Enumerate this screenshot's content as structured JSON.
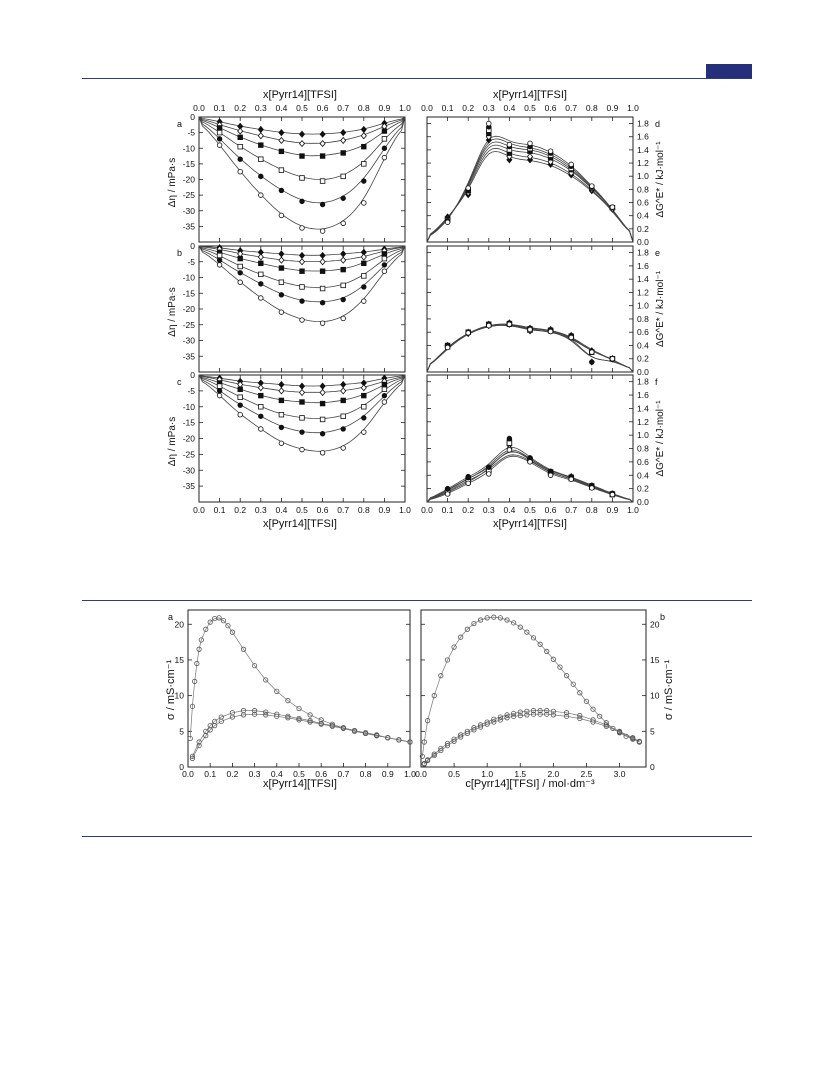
{
  "page": {
    "accent": "#26307a",
    "rule_color": "#2b3a8a"
  },
  "figure1": {
    "top_axis_label": "x[Pyrr14][TFSI]",
    "bottom_axis_label": "x[Pyrr14][TFSI]",
    "x_ticks": [
      "0.0",
      "0.1",
      "0.2",
      "0.3",
      "0.4",
      "0.5",
      "0.6",
      "0.7",
      "0.8",
      "0.9",
      "1.0"
    ],
    "left_ylabel": "Δη / mPa·s",
    "right_ylabel": "ΔG^E* / kJ·mol⁻¹",
    "left_yticks": [
      "0",
      "-5",
      "-10",
      "-15",
      "-20",
      "-25",
      "-30",
      "-35"
    ],
    "right_yticks": [
      "0.0",
      "0.2",
      "0.4",
      "0.6",
      "0.8",
      "1.0",
      "1.2",
      "1.4",
      "1.6",
      "1.8"
    ],
    "panel_letters": [
      "a",
      "b",
      "c",
      "d",
      "e",
      "f"
    ]
  },
  "figure2": {
    "panel_letters": [
      "a",
      "b"
    ],
    "left_xlabel": "x[Pyrr14][TFSI]",
    "right_xlabel": "c[Pyrr14][TFSI] / mol·dm⁻³",
    "ylabel": "σ / mS·cm⁻¹",
    "left_xticks": [
      "0.0",
      "0.1",
      "0.2",
      "0.3",
      "0.4",
      "0.5",
      "0.6",
      "0.7",
      "0.8",
      "0.9",
      "1.0"
    ],
    "right_xticks": [
      "0.0",
      "0.5",
      "1.0",
      "1.5",
      "2.0",
      "2.5",
      "3.0"
    ],
    "yticks": [
      "0",
      "5",
      "10",
      "15",
      "20"
    ]
  },
  "chart_data": [
    {
      "type": "scatter",
      "panel": "a",
      "xlim": [
        0,
        1
      ],
      "ylim": [
        -40,
        0
      ],
      "x": [
        0.1,
        0.2,
        0.3,
        0.4,
        0.5,
        0.6,
        0.7,
        0.8,
        0.9
      ],
      "series": [
        {
          "marker": "filled-diamond",
          "values": [
            -1.5,
            -3.0,
            -4.0,
            -5.0,
            -5.5,
            -5.5,
            -5.0,
            -4.0,
            -2.0
          ]
        },
        {
          "marker": "open-diamond",
          "values": [
            -2.5,
            -4.5,
            -6.0,
            -7.5,
            -8.5,
            -8.5,
            -7.5,
            -6.0,
            -3.0
          ]
        },
        {
          "marker": "filled-square",
          "values": [
            -3.5,
            -6.5,
            -9.0,
            -11.0,
            -12.5,
            -12.5,
            -11.5,
            -9.5,
            -4.5
          ]
        },
        {
          "marker": "open-square",
          "values": [
            -5.0,
            -9.5,
            -13.5,
            -17.0,
            -19.5,
            -20.5,
            -19.0,
            -15.0,
            -7.0
          ]
        },
        {
          "marker": "filled-circle",
          "values": [
            -7.0,
            -13.5,
            -19.0,
            -23.5,
            -27.0,
            -28.0,
            -26.0,
            -20.5,
            -10.0
          ]
        },
        {
          "marker": "open-circle",
          "values": [
            -9.0,
            -17.5,
            -25.0,
            -31.5,
            -35.5,
            -36.5,
            -34.0,
            -27.5,
            -13.0
          ]
        }
      ]
    },
    {
      "type": "scatter",
      "panel": "b",
      "xlim": [
        0,
        1
      ],
      "ylim": [
        -40,
        0
      ],
      "x": [
        0.1,
        0.2,
        0.3,
        0.4,
        0.5,
        0.6,
        0.7,
        0.8,
        0.9
      ],
      "series": [
        {
          "marker": "filled-diamond",
          "values": [
            -0.5,
            -1.5,
            -2.0,
            -2.5,
            -3.0,
            -3.0,
            -2.5,
            -2.0,
            -1.0
          ]
        },
        {
          "marker": "open-diamond",
          "values": [
            -1.0,
            -2.5,
            -3.5,
            -4.5,
            -5.0,
            -5.0,
            -4.5,
            -3.5,
            -1.5
          ]
        },
        {
          "marker": "filled-square",
          "values": [
            -2.0,
            -4.0,
            -5.5,
            -7.0,
            -8.0,
            -8.0,
            -7.5,
            -5.5,
            -2.5
          ]
        },
        {
          "marker": "open-square",
          "values": [
            -3.0,
            -6.5,
            -9.0,
            -11.5,
            -13.0,
            -13.5,
            -12.5,
            -9.5,
            -4.0
          ]
        },
        {
          "marker": "filled-circle",
          "values": [
            -4.5,
            -8.5,
            -12.0,
            -15.5,
            -17.5,
            -18.0,
            -17.0,
            -13.0,
            -6.0
          ]
        },
        {
          "marker": "open-circle",
          "values": [
            -6.0,
            -11.5,
            -16.5,
            -21.0,
            -23.5,
            -24.5,
            -23.0,
            -17.5,
            -8.0
          ]
        }
      ]
    },
    {
      "type": "scatter",
      "panel": "c",
      "xlim": [
        0,
        1
      ],
      "ylim": [
        -40,
        0
      ],
      "x": [
        0.1,
        0.2,
        0.3,
        0.4,
        0.5,
        0.6,
        0.7,
        0.8,
        0.9
      ],
      "series": [
        {
          "marker": "filled-diamond",
          "values": [
            -1.0,
            -2.0,
            -2.5,
            -3.0,
            -3.5,
            -3.5,
            -3.0,
            -2.5,
            -1.0
          ]
        },
        {
          "marker": "open-diamond",
          "values": [
            -1.5,
            -3.0,
            -4.0,
            -5.0,
            -5.5,
            -5.5,
            -5.0,
            -4.0,
            -2.0
          ]
        },
        {
          "marker": "filled-square",
          "values": [
            -2.5,
            -4.5,
            -6.5,
            -8.0,
            -8.5,
            -9.0,
            -8.0,
            -6.5,
            -3.0
          ]
        },
        {
          "marker": "open-square",
          "values": [
            -3.5,
            -7.0,
            -10.0,
            -12.5,
            -13.5,
            -14.0,
            -13.0,
            -10.0,
            -4.5
          ]
        },
        {
          "marker": "filled-circle",
          "values": [
            -5.0,
            -9.5,
            -13.0,
            -16.5,
            -18.0,
            -18.5,
            -17.0,
            -13.5,
            -6.5
          ]
        },
        {
          "marker": "open-circle",
          "values": [
            -6.5,
            -12.5,
            -17.0,
            -21.5,
            -23.5,
            -24.5,
            -23.0,
            -18.0,
            -8.5
          ]
        }
      ]
    },
    {
      "type": "scatter",
      "panel": "d",
      "xlim": [
        0,
        1
      ],
      "ylim": [
        0,
        1.9
      ],
      "x": [
        0.1,
        0.2,
        0.3,
        0.4,
        0.5,
        0.6,
        0.7,
        0.8,
        0.9
      ],
      "series": [
        {
          "marker": "filled-diamond",
          "values": [
            0.38,
            0.72,
            1.55,
            1.25,
            1.25,
            1.18,
            1.02,
            0.78,
            0.5
          ]
        },
        {
          "marker": "open-diamond",
          "values": [
            0.36,
            0.75,
            1.6,
            1.3,
            1.3,
            1.22,
            1.05,
            0.8,
            0.5
          ]
        },
        {
          "marker": "filled-square",
          "values": [
            0.35,
            0.78,
            1.65,
            1.35,
            1.38,
            1.28,
            1.1,
            0.82,
            0.52
          ]
        },
        {
          "marker": "open-square",
          "values": [
            0.33,
            0.8,
            1.7,
            1.4,
            1.42,
            1.32,
            1.12,
            0.83,
            0.52
          ]
        },
        {
          "marker": "filled-circle",
          "values": [
            0.32,
            0.8,
            1.75,
            1.45,
            1.45,
            1.35,
            1.15,
            0.84,
            0.53
          ]
        },
        {
          "marker": "open-circle",
          "values": [
            0.3,
            0.82,
            1.8,
            1.48,
            1.5,
            1.38,
            1.18,
            0.85,
            0.53
          ]
        }
      ]
    },
    {
      "type": "scatter",
      "panel": "e",
      "xlim": [
        0,
        1
      ],
      "ylim": [
        0,
        1.9
      ],
      "x": [
        0.1,
        0.2,
        0.3,
        0.4,
        0.5,
        0.6,
        0.7,
        0.8,
        0.9
      ],
      "series": [
        {
          "marker": "filled-diamond",
          "values": [
            0.38,
            0.58,
            0.72,
            0.74,
            0.66,
            0.64,
            0.55,
            0.32,
            0.2
          ]
        },
        {
          "marker": "open-diamond",
          "values": [
            0.4,
            0.6,
            0.7,
            0.72,
            0.62,
            0.62,
            0.52,
            0.15,
            0.2
          ]
        },
        {
          "marker": "filled-square",
          "values": [
            0.4,
            0.6,
            0.72,
            0.73,
            0.65,
            0.63,
            0.54,
            0.3,
            0.2
          ]
        },
        {
          "marker": "open-square",
          "values": [
            0.38,
            0.6,
            0.71,
            0.72,
            0.63,
            0.62,
            0.53,
            0.3,
            0.2
          ]
        },
        {
          "marker": "filled-circle",
          "values": [
            0.39,
            0.6,
            0.72,
            0.73,
            0.66,
            0.63,
            0.55,
            0.15,
            0.2
          ]
        },
        {
          "marker": "open-circle",
          "values": [
            0.37,
            0.59,
            0.7,
            0.72,
            0.64,
            0.61,
            0.52,
            0.3,
            0.2
          ]
        }
      ]
    },
    {
      "type": "scatter",
      "panel": "f",
      "xlim": [
        0,
        1
      ],
      "ylim": [
        0,
        1.9
      ],
      "x": [
        0.1,
        0.2,
        0.3,
        0.4,
        0.5,
        0.6,
        0.7,
        0.8,
        0.9
      ],
      "series": [
        {
          "marker": "filled-diamond",
          "values": [
            0.18,
            0.36,
            0.48,
            0.85,
            0.65,
            0.44,
            0.38,
            0.24,
            0.12
          ]
        },
        {
          "marker": "open-diamond",
          "values": [
            0.15,
            0.33,
            0.45,
            0.8,
            0.62,
            0.42,
            0.36,
            0.23,
            0.12
          ]
        },
        {
          "marker": "filled-square",
          "values": [
            0.17,
            0.35,
            0.5,
            0.9,
            0.64,
            0.45,
            0.37,
            0.24,
            0.12
          ]
        },
        {
          "marker": "open-square",
          "values": [
            0.14,
            0.3,
            0.46,
            0.88,
            0.62,
            0.43,
            0.35,
            0.22,
            0.11
          ]
        },
        {
          "marker": "filled-circle",
          "values": [
            0.2,
            0.38,
            0.52,
            0.95,
            0.66,
            0.46,
            0.38,
            0.25,
            0.13
          ]
        },
        {
          "marker": "open-circle",
          "values": [
            0.12,
            0.28,
            0.42,
            0.78,
            0.6,
            0.4,
            0.34,
            0.21,
            0.11
          ]
        }
      ]
    },
    {
      "type": "scatter",
      "panel": "a2",
      "xlim": [
        0,
        1
      ],
      "ylim": [
        0,
        22
      ],
      "series": [
        {
          "marker": "open-circle",
          "x": [
            0.01,
            0.02,
            0.03,
            0.04,
            0.05,
            0.06,
            0.08,
            0.1,
            0.12,
            0.14,
            0.16,
            0.18,
            0.2,
            0.25,
            0.3,
            0.35,
            0.4,
            0.45,
            0.5,
            0.55,
            0.6,
            0.65,
            0.7,
            0.75,
            0.8,
            0.85,
            0.9,
            0.95,
            1.0
          ],
          "values": [
            4.0,
            8.5,
            12.0,
            14.5,
            16.5,
            17.8,
            19.3,
            20.3,
            20.8,
            20.9,
            20.5,
            19.8,
            18.9,
            16.5,
            14.2,
            12.2,
            10.6,
            9.3,
            8.2,
            7.3,
            6.6,
            6.0,
            5.5,
            5.1,
            4.7,
            4.4,
            4.1,
            3.8,
            3.5
          ]
        },
        {
          "marker": "open-circle",
          "x": [
            0.02,
            0.05,
            0.08,
            0.1,
            0.12,
            0.15,
            0.2,
            0.25,
            0.3,
            0.35,
            0.4,
            0.45,
            0.5,
            0.55,
            0.6,
            0.65,
            0.7,
            0.75,
            0.8,
            0.85,
            0.9,
            0.95,
            1.0
          ],
          "values": [
            1.5,
            3.5,
            5.0,
            5.8,
            6.4,
            7.0,
            7.6,
            7.9,
            7.9,
            7.7,
            7.4,
            7.1,
            6.8,
            6.5,
            6.1,
            5.8,
            5.5,
            5.1,
            4.8,
            4.5,
            4.1,
            3.8,
            3.5
          ]
        },
        {
          "marker": "open-circle",
          "x": [
            0.02,
            0.05,
            0.08,
            0.1,
            0.12,
            0.15,
            0.2,
            0.25,
            0.3,
            0.35,
            0.4,
            0.45,
            0.5,
            0.55,
            0.6,
            0.65,
            0.7,
            0.75,
            0.8,
            0.85,
            0.9,
            0.95,
            1.0
          ],
          "values": [
            1.2,
            3.0,
            4.4,
            5.2,
            5.8,
            6.4,
            7.0,
            7.3,
            7.4,
            7.3,
            7.1,
            6.9,
            6.6,
            6.3,
            6.0,
            5.7,
            5.4,
            5.0,
            4.7,
            4.4,
            4.1,
            3.8,
            3.5
          ]
        }
      ]
    },
    {
      "type": "scatter",
      "panel": "b2",
      "xlim": [
        0,
        3.4
      ],
      "ylim": [
        0,
        22
      ],
      "series": [
        {
          "marker": "open-circle",
          "x": [
            0.02,
            0.05,
            0.1,
            0.2,
            0.3,
            0.4,
            0.5,
            0.6,
            0.7,
            0.8,
            0.9,
            1.0,
            1.1,
            1.2,
            1.3,
            1.4,
            1.5,
            1.6,
            1.7,
            1.8,
            1.9,
            2.0,
            2.1,
            2.2,
            2.3,
            2.4,
            2.5,
            2.6,
            2.7,
            2.8,
            2.9,
            3.0,
            3.1,
            3.2,
            3.3
          ],
          "values": [
            1.5,
            3.5,
            6.5,
            10.0,
            12.8,
            15.0,
            16.8,
            18.2,
            19.3,
            20.1,
            20.6,
            20.9,
            21.0,
            20.9,
            20.6,
            20.2,
            19.6,
            18.9,
            18.1,
            17.2,
            16.2,
            15.1,
            14.0,
            12.8,
            11.6,
            10.4,
            9.2,
            8.1,
            7.1,
            6.2,
            5.4,
            4.8,
            4.3,
            3.9,
            3.5
          ]
        },
        {
          "marker": "open-circle",
          "x": [
            0.05,
            0.1,
            0.2,
            0.3,
            0.4,
            0.5,
            0.6,
            0.7,
            0.8,
            0.9,
            1.0,
            1.1,
            1.2,
            1.3,
            1.4,
            1.5,
            1.6,
            1.7,
            1.8,
            1.9,
            2.0,
            2.2,
            2.4,
            2.6,
            2.8,
            3.0,
            3.2,
            3.3
          ],
          "values": [
            0.5,
            1.0,
            1.8,
            2.6,
            3.3,
            3.9,
            4.5,
            5.0,
            5.5,
            5.9,
            6.3,
            6.7,
            7.0,
            7.3,
            7.5,
            7.7,
            7.8,
            7.9,
            7.9,
            7.9,
            7.8,
            7.6,
            7.2,
            6.6,
            5.9,
            5.0,
            4.1,
            3.6
          ]
        },
        {
          "marker": "open-circle",
          "x": [
            0.05,
            0.1,
            0.2,
            0.3,
            0.4,
            0.5,
            0.6,
            0.7,
            0.8,
            0.9,
            1.0,
            1.1,
            1.2,
            1.3,
            1.4,
            1.5,
            1.6,
            1.7,
            1.8,
            1.9,
            2.0,
            2.2,
            2.4,
            2.6,
            2.8,
            3.0,
            3.2,
            3.3
          ],
          "values": [
            0.4,
            0.9,
            1.6,
            2.3,
            3.0,
            3.6,
            4.2,
            4.7,
            5.2,
            5.6,
            6.0,
            6.3,
            6.6,
            6.9,
            7.1,
            7.2,
            7.3,
            7.4,
            7.4,
            7.4,
            7.3,
            7.1,
            6.8,
            6.3,
            5.7,
            4.9,
            4.0,
            3.5
          ]
        }
      ]
    }
  ]
}
